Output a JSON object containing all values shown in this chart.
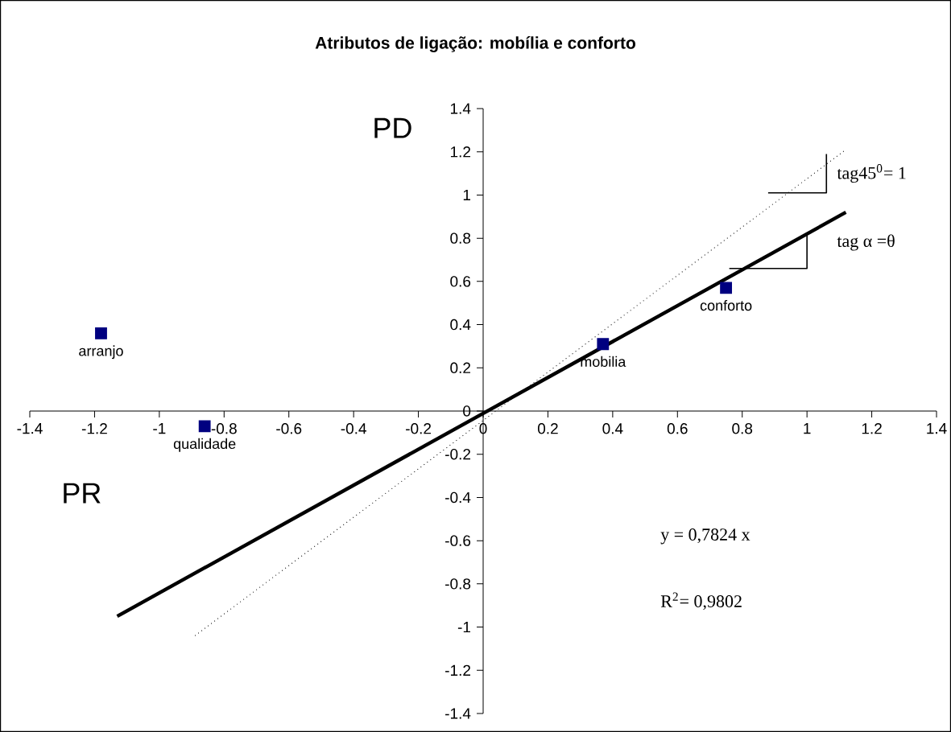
{
  "chart_data": {
    "type": "scatter",
    "title": "Atributos de ligação: mobília e conforto",
    "xlim": [
      -1.4,
      1.4
    ],
    "ylim": [
      -1.4,
      1.4
    ],
    "xticks": [
      -1.4,
      -1.2,
      -1,
      -0.8,
      -0.6,
      -0.4,
      -0.2,
      0,
      0.2,
      0.4,
      0.6,
      0.8,
      1,
      1.2,
      1.4
    ],
    "yticks": [
      -1.4,
      -1.2,
      -1,
      -0.8,
      -0.6,
      -0.4,
      -0.2,
      0,
      0.2,
      0.4,
      0.6,
      0.8,
      1,
      1.2,
      1.4
    ],
    "grid": false,
    "series": [
      {
        "marker": "square",
        "color": "#000080",
        "x": [
          -1.18,
          -0.86,
          0.37,
          0.75
        ],
        "values": [
          0.36,
          -0.07,
          0.31,
          0.57
        ]
      },
      {
        "type": "line",
        "marker": "none",
        "line_style": "solid",
        "color": "#000000",
        "x": [
          -1.13,
          1.12
        ],
        "values": [
          -0.95,
          0.92
        ]
      },
      {
        "type": "line",
        "marker": "none",
        "line_style": "dotted",
        "color": "#000000",
        "x": [
          -0.89,
          1.12
        ],
        "values": [
          -1.04,
          1.21
        ]
      },
      {
        "type": "line",
        "marker": "none",
        "line_style": "solid",
        "color": "#000000",
        "x": [
          0.88,
          1.06,
          1.06
        ],
        "values": [
          1.01,
          1.01,
          1.19
        ]
      },
      {
        "type": "line",
        "marker": "none",
        "line_style": "solid",
        "color": "#000000",
        "x": [
          0.76,
          1.0,
          1.0
        ],
        "values": [
          0.66,
          0.66,
          0.82
        ]
      }
    ],
    "annotations": [
      "PD",
      "PR",
      "tag45$^{0}$= 1",
      "tag α =θ",
      "y = 0,7824 x",
      "R$^{2}$= 0,9802",
      {
        "text": "arranjo",
        "x": -1.18,
        "y": 0.36
      },
      {
        "text": "qualidade",
        "x": -0.86,
        "y": -0.07
      },
      {
        "text": "mobilia",
        "x": 0.37,
        "y": 0.31
      },
      {
        "text": "conforto",
        "x": 0.75,
        "y": 0.57
      }
    ]
  }
}
